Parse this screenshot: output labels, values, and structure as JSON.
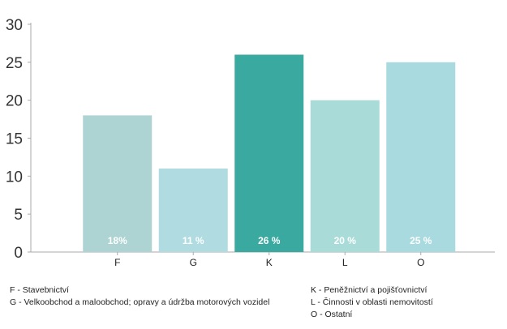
{
  "chart_data": {
    "type": "bar",
    "categories": [
      "F",
      "G",
      "K",
      "L",
      "O"
    ],
    "values": [
      18,
      11,
      26,
      20,
      25
    ],
    "data_labels": [
      "18%",
      "11 %",
      "26 %",
      "20 %",
      "25 %"
    ],
    "colors": [
      "#aed3d3",
      "#b0dce1",
      "#3aaaa1",
      "#a9dcd9",
      "#a8dadf"
    ],
    "ylim": [
      0,
      30
    ],
    "yticks": [
      0,
      5,
      10,
      15,
      20,
      25,
      30
    ],
    "grid": false,
    "axis_color": "#aaaaaa",
    "legend_left": [
      "F - Stavebnictví",
      "G - Velkoobchod a maloobchod; opravy a údržba motorových vozidel"
    ],
    "legend_right": [
      "K - Peněžnictví a pojišťovnictví",
      "L - Činnosti v oblasti nemovitostí",
      "O - Ostatní"
    ]
  }
}
